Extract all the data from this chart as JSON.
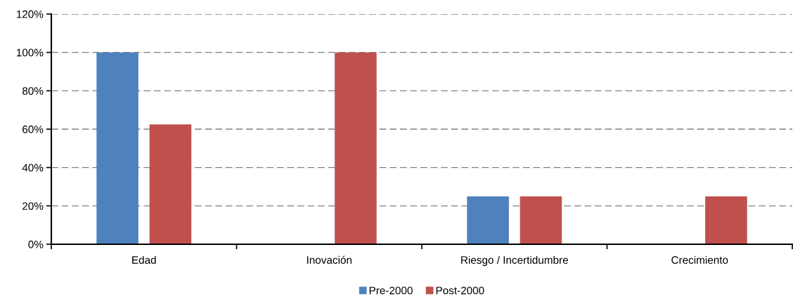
{
  "chart_data": {
    "type": "bar",
    "categories": [
      "Edad",
      "Inovación",
      "Riesgo / Incertidumbre",
      "Crecimiento"
    ],
    "series": [
      {
        "name": "Pre-2000",
        "color": "#4f81bd",
        "values": [
          100,
          0,
          25,
          0
        ]
      },
      {
        "name": "Post-2000",
        "color": "#c0504d",
        "values": [
          62.5,
          100,
          25,
          25
        ]
      }
    ],
    "ylim": [
      0,
      120
    ],
    "yticks": [
      {
        "value": 0,
        "label": "0%"
      },
      {
        "value": 20,
        "label": "20%"
      },
      {
        "value": 40,
        "label": "40%"
      },
      {
        "value": 60,
        "label": "60%"
      },
      {
        "value": 80,
        "label": "80%"
      },
      {
        "value": 100,
        "label": "100%"
      },
      {
        "value": 120,
        "label": "120%"
      }
    ],
    "grid": "y",
    "legend": "bottom"
  }
}
